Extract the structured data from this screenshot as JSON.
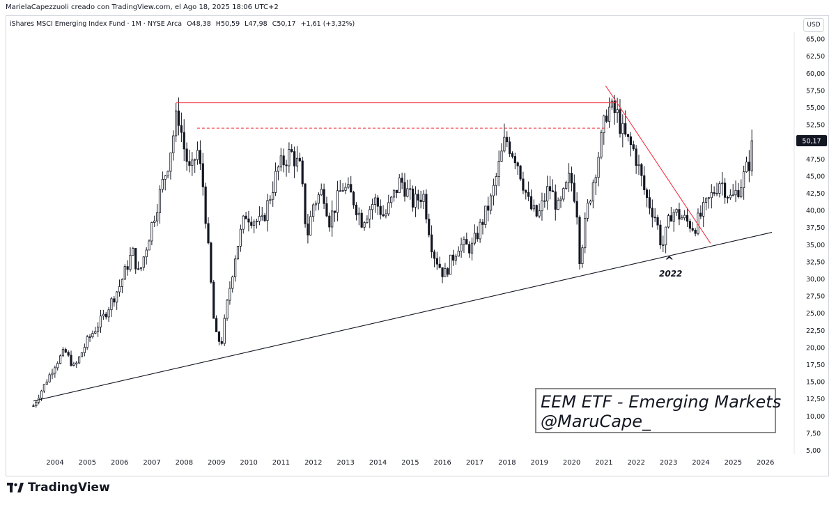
{
  "header": {
    "credit": "MarielaCapezzuoli creado con TradingView.com, el Ago 18, 2025 18:06 UTC+2"
  },
  "symbol": {
    "name": "iShares MSCI Emerging Index Fund · 1M · NYSE Arca",
    "open": "O48,38",
    "high": "H50,59",
    "low": "L47,98",
    "close": "C50,17",
    "change": "+1,61 (+3,32%)"
  },
  "currency": "USD",
  "annotation": {
    "line1": "EEM ETF - Emerging Markets",
    "line2": "@MaruCape_"
  },
  "marker_label": "2022",
  "brand": "TradingView",
  "colors": {
    "candle": "#131722",
    "trendline": "#131722",
    "resistance": "#f23645",
    "last_price_bg": "#131722"
  },
  "chart_data": {
    "type": "candlestick",
    "title": "iShares MSCI Emerging Index Fund",
    "interval": "1M",
    "x_ticks": [
      "2004",
      "2005",
      "2006",
      "2007",
      "2008",
      "2009",
      "2010",
      "2011",
      "2012",
      "2013",
      "2014",
      "2015",
      "2016",
      "2017",
      "2018",
      "2019",
      "2020",
      "2021",
      "2022",
      "2023",
      "2024",
      "2025",
      "2026"
    ],
    "y_ticks": [
      "5,00",
      "7,50",
      "10,00",
      "12,50",
      "15,00",
      "17,50",
      "20,00",
      "22,50",
      "25,00",
      "27,50",
      "30,00",
      "32,50",
      "35,00",
      "37,50",
      "40,00",
      "42,50",
      "45,00",
      "47,50",
      "50,00",
      "52,50",
      "55,00",
      "57,50",
      "60,00",
      "62,50",
      "65,00"
    ],
    "ylim": [
      5,
      65
    ],
    "xlim": [
      2003.25,
      2026.5
    ],
    "last_price": "50,17",
    "anchors": [
      {
        "t": 2003.33,
        "v": 11.5
      },
      {
        "t": 2004.0,
        "v": 17.5
      },
      {
        "t": 2004.3,
        "v": 19.5
      },
      {
        "t": 2004.6,
        "v": 17.0
      },
      {
        "t": 2005.0,
        "v": 21.0
      },
      {
        "t": 2005.5,
        "v": 24.5
      },
      {
        "t": 2006.0,
        "v": 29.0
      },
      {
        "t": 2006.4,
        "v": 34.0
      },
      {
        "t": 2006.6,
        "v": 30.5
      },
      {
        "t": 2007.0,
        "v": 38.0
      },
      {
        "t": 2007.5,
        "v": 47.0
      },
      {
        "t": 2007.8,
        "v": 54.5
      },
      {
        "t": 2008.0,
        "v": 49.0
      },
      {
        "t": 2008.2,
        "v": 45.0
      },
      {
        "t": 2008.4,
        "v": 49.0
      },
      {
        "t": 2008.6,
        "v": 43.0
      },
      {
        "t": 2008.8,
        "v": 31.0
      },
      {
        "t": 2008.95,
        "v": 22.0
      },
      {
        "t": 2009.15,
        "v": 20.5
      },
      {
        "t": 2009.35,
        "v": 27.0
      },
      {
        "t": 2009.6,
        "v": 34.0
      },
      {
        "t": 2009.9,
        "v": 39.5
      },
      {
        "t": 2010.4,
        "v": 38.0
      },
      {
        "t": 2010.9,
        "v": 46.0
      },
      {
        "t": 2011.3,
        "v": 48.5
      },
      {
        "t": 2011.6,
        "v": 46.0
      },
      {
        "t": 2011.8,
        "v": 36.0
      },
      {
        "t": 2012.0,
        "v": 41.0
      },
      {
        "t": 2012.3,
        "v": 43.0
      },
      {
        "t": 2012.5,
        "v": 38.5
      },
      {
        "t": 2012.9,
        "v": 43.5
      },
      {
        "t": 2013.2,
        "v": 42.0
      },
      {
        "t": 2013.5,
        "v": 38.5
      },
      {
        "t": 2013.9,
        "v": 41.5
      },
      {
        "t": 2014.2,
        "v": 39.0
      },
      {
        "t": 2014.7,
        "v": 44.5
      },
      {
        "t": 2015.1,
        "v": 41.0
      },
      {
        "t": 2015.4,
        "v": 42.5
      },
      {
        "t": 2015.7,
        "v": 34.0
      },
      {
        "t": 2016.05,
        "v": 30.5
      },
      {
        "t": 2016.5,
        "v": 35.0
      },
      {
        "t": 2016.9,
        "v": 34.5
      },
      {
        "t": 2017.5,
        "v": 41.5
      },
      {
        "t": 2017.95,
        "v": 50.5
      },
      {
        "t": 2018.3,
        "v": 47.5
      },
      {
        "t": 2018.7,
        "v": 40.5
      },
      {
        "t": 2018.95,
        "v": 39.0
      },
      {
        "t": 2019.3,
        "v": 43.5
      },
      {
        "t": 2019.6,
        "v": 40.0
      },
      {
        "t": 2019.95,
        "v": 45.0
      },
      {
        "t": 2020.15,
        "v": 41.0
      },
      {
        "t": 2020.25,
        "v": 33.0
      },
      {
        "t": 2020.5,
        "v": 40.5
      },
      {
        "t": 2020.95,
        "v": 51.0
      },
      {
        "t": 2021.1,
        "v": 55.0
      },
      {
        "t": 2021.4,
        "v": 54.0
      },
      {
        "t": 2021.6,
        "v": 51.0
      },
      {
        "t": 2021.95,
        "v": 48.5
      },
      {
        "t": 2022.3,
        "v": 42.0
      },
      {
        "t": 2022.6,
        "v": 39.0
      },
      {
        "t": 2022.8,
        "v": 34.5
      },
      {
        "t": 2023.1,
        "v": 40.0
      },
      {
        "t": 2023.4,
        "v": 39.0
      },
      {
        "t": 2023.8,
        "v": 37.5
      },
      {
        "t": 2024.2,
        "v": 41.0
      },
      {
        "t": 2024.6,
        "v": 44.5
      },
      {
        "t": 2024.95,
        "v": 41.5
      },
      {
        "t": 2025.25,
        "v": 44.0
      },
      {
        "t": 2025.5,
        "v": 47.0
      },
      {
        "t": 2025.62,
        "v": 50.17
      }
    ],
    "lines": [
      {
        "name": "support",
        "from": {
          "t": 2003.33,
          "v": 12.2
        },
        "to": {
          "t": 2026.2,
          "v": 36.8
        },
        "style": "solid",
        "color": "#131722"
      },
      {
        "name": "resistance-top",
        "from": {
          "t": 2007.75,
          "v": 55.7
        },
        "to": {
          "t": 2021.35,
          "v": 55.7
        },
        "style": "solid",
        "color": "#f23645"
      },
      {
        "name": "resistance-dashed",
        "from": {
          "t": 2008.4,
          "v": 52.0
        },
        "to": {
          "t": 2021.1,
          "v": 52.0
        },
        "style": "dashed",
        "color": "#f23645"
      },
      {
        "name": "downtrend",
        "from": {
          "t": 2021.05,
          "v": 58.2
        },
        "to": {
          "t": 2024.3,
          "v": 35.2
        },
        "style": "solid",
        "color": "#f23645"
      }
    ]
  }
}
